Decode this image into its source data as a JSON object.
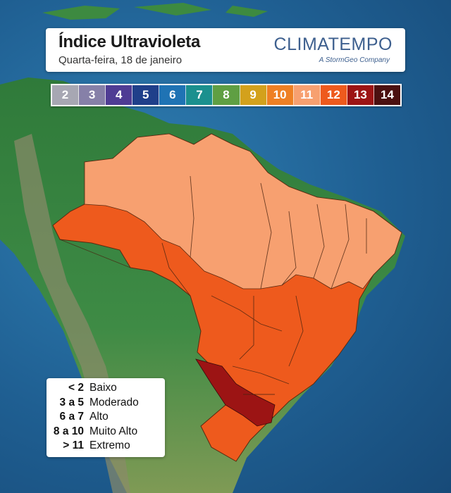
{
  "header": {
    "title": "Índice Ultravioleta",
    "subtitle": "Quarta-feira, 18 de janeiro",
    "brand": "CLIMATEMPO",
    "brand_tagline": "A StormGeo Company"
  },
  "uv_scale": [
    {
      "value": "2",
      "color": "#a7a7b3"
    },
    {
      "value": "3",
      "color": "#8680a8"
    },
    {
      "value": "4",
      "color": "#4f3c94"
    },
    {
      "value": "5",
      "color": "#1f3f8a"
    },
    {
      "value": "6",
      "color": "#1f73b4"
    },
    {
      "value": "7",
      "color": "#1b908e"
    },
    {
      "value": "8",
      "color": "#5f9f43"
    },
    {
      "value": "9",
      "color": "#d3a11c"
    },
    {
      "value": "10",
      "color": "#ee8024"
    },
    {
      "value": "11",
      "color": "#f7a070"
    },
    {
      "value": "12",
      "color": "#ee5a1d"
    },
    {
      "value": "13",
      "color": "#9c1414"
    },
    {
      "value": "14",
      "color": "#4b1010"
    }
  ],
  "legend": [
    {
      "range": "< 2",
      "label": "Baixo"
    },
    {
      "range": "3 a 5",
      "label": "Moderado"
    },
    {
      "range": "6 a 7",
      "label": "Alto"
    },
    {
      "range": "8 a 10",
      "label": "Muito Alto"
    },
    {
      "range": "> 11",
      "label": "Extremo"
    }
  ],
  "map_colors": {
    "ocean": "#23679d",
    "land": "#3f8a45",
    "andes": "#8a8a6a",
    "uv_11": "#f7a070",
    "uv_12": "#ee5a1d",
    "uv_13": "#9c1414"
  }
}
